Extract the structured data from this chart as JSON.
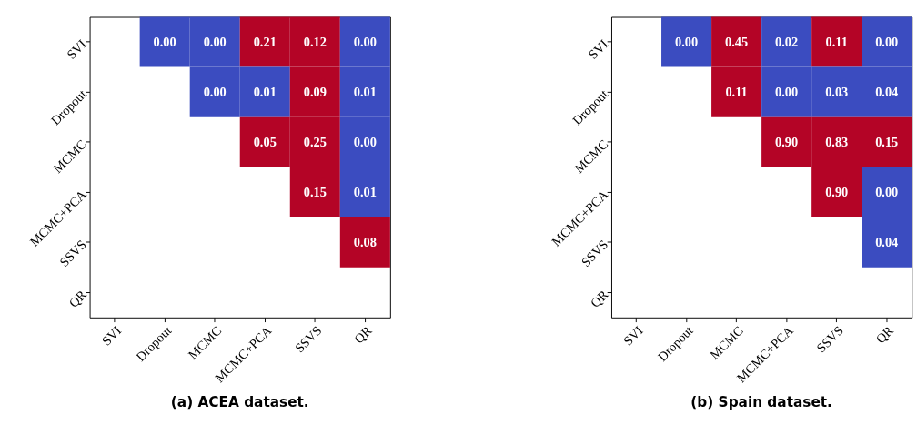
{
  "chart_data": [
    {
      "type": "heatmap",
      "title": "(a) ACEA dataset.",
      "data_labels": true,
      "cell_labels": [
        [
          null,
          "0.00",
          "0.00",
          "0.21",
          "0.12",
          "0.00"
        ],
        [
          null,
          null,
          "0.00",
          "0.01",
          "0.09",
          "0.01"
        ],
        [
          null,
          null,
          null,
          "0.05",
          "0.25",
          "0.00"
        ],
        [
          null,
          null,
          null,
          null,
          "0.15",
          "0.01"
        ],
        [
          null,
          null,
          null,
          null,
          null,
          "0.08"
        ],
        [
          null,
          null,
          null,
          null,
          null,
          null
        ]
      ],
      "categories": [
        "SVI",
        "Dropout",
        "MCMC",
        "MCMC+PCA",
        "SSVS",
        "QR"
      ],
      "y_categories": [
        "SVI",
        "Dropout",
        "MCMC",
        "MCMC+PCA",
        "SSVS",
        "QR"
      ],
      "cells": [
        [
          null,
          0.0,
          0.0,
          0.21,
          0.12,
          0.0
        ],
        [
          null,
          null,
          0.0,
          0.01,
          0.09,
          0.01
        ],
        [
          null,
          null,
          null,
          0.05,
          0.25,
          0.0
        ],
        [
          null,
          null,
          null,
          null,
          0.15,
          0.01
        ],
        [
          null,
          null,
          null,
          null,
          null,
          0.08
        ],
        [
          null,
          null,
          null,
          null,
          null,
          null
        ]
      ],
      "colors": [
        [
          null,
          "#3b4cc0",
          "#3b4cc0",
          "#b40426",
          "#b40426",
          "#3b4cc0"
        ],
        [
          null,
          null,
          "#3b4cc0",
          "#3b4cc0",
          "#b40426",
          "#3b4cc0"
        ],
        [
          null,
          null,
          null,
          "#b40426",
          "#b40426",
          "#3b4cc0"
        ],
        [
          null,
          null,
          null,
          null,
          "#b40426",
          "#3b4cc0"
        ],
        [
          null,
          null,
          null,
          null,
          null,
          "#b40426"
        ],
        [
          null,
          null,
          null,
          null,
          null,
          null
        ]
      ]
    },
    {
      "type": "heatmap",
      "title": "(b) Spain dataset.",
      "data_labels": true,
      "cell_labels": [
        [
          null,
          "0.00",
          "0.45",
          "0.02",
          "0.11",
          "0.00"
        ],
        [
          null,
          null,
          "0.11",
          "0.00",
          "0.03",
          "0.04"
        ],
        [
          null,
          null,
          null,
          "0.90",
          "0.83",
          "0.15"
        ],
        [
          null,
          null,
          null,
          null,
          "0.90",
          "0.00"
        ],
        [
          null,
          null,
          null,
          null,
          null,
          "0.04"
        ],
        [
          null,
          null,
          null,
          null,
          null,
          null
        ]
      ],
      "categories": [
        "SVI",
        "Dropout",
        "MCMC",
        "MCMC+PCA",
        "SSVS",
        "QR"
      ],
      "y_categories": [
        "SVI",
        "Dropout",
        "MCMC",
        "MCMC+PCA",
        "SSVS",
        "QR"
      ],
      "cells": [
        [
          null,
          0.0,
          0.45,
          0.02,
          0.11,
          0.0
        ],
        [
          null,
          null,
          0.11,
          0.0,
          0.03,
          0.04
        ],
        [
          null,
          null,
          null,
          0.9,
          0.83,
          0.15
        ],
        [
          null,
          null,
          null,
          null,
          0.9,
          0.0
        ],
        [
          null,
          null,
          null,
          null,
          null,
          0.04
        ],
        [
          null,
          null,
          null,
          null,
          null,
          null
        ]
      ],
      "colors": [
        [
          null,
          "#3b4cc0",
          "#b40426",
          "#3b4cc0",
          "#b40426",
          "#3b4cc0"
        ],
        [
          null,
          null,
          "#b40426",
          "#3b4cc0",
          "#3b4cc0",
          "#3b4cc0"
        ],
        [
          null,
          null,
          null,
          "#b40426",
          "#b40426",
          "#b40426"
        ],
        [
          null,
          null,
          null,
          null,
          "#b40426",
          "#3b4cc0"
        ],
        [
          null,
          null,
          null,
          null,
          null,
          "#3b4cc0"
        ],
        [
          null,
          null,
          null,
          null,
          null,
          null
        ]
      ]
    }
  ]
}
